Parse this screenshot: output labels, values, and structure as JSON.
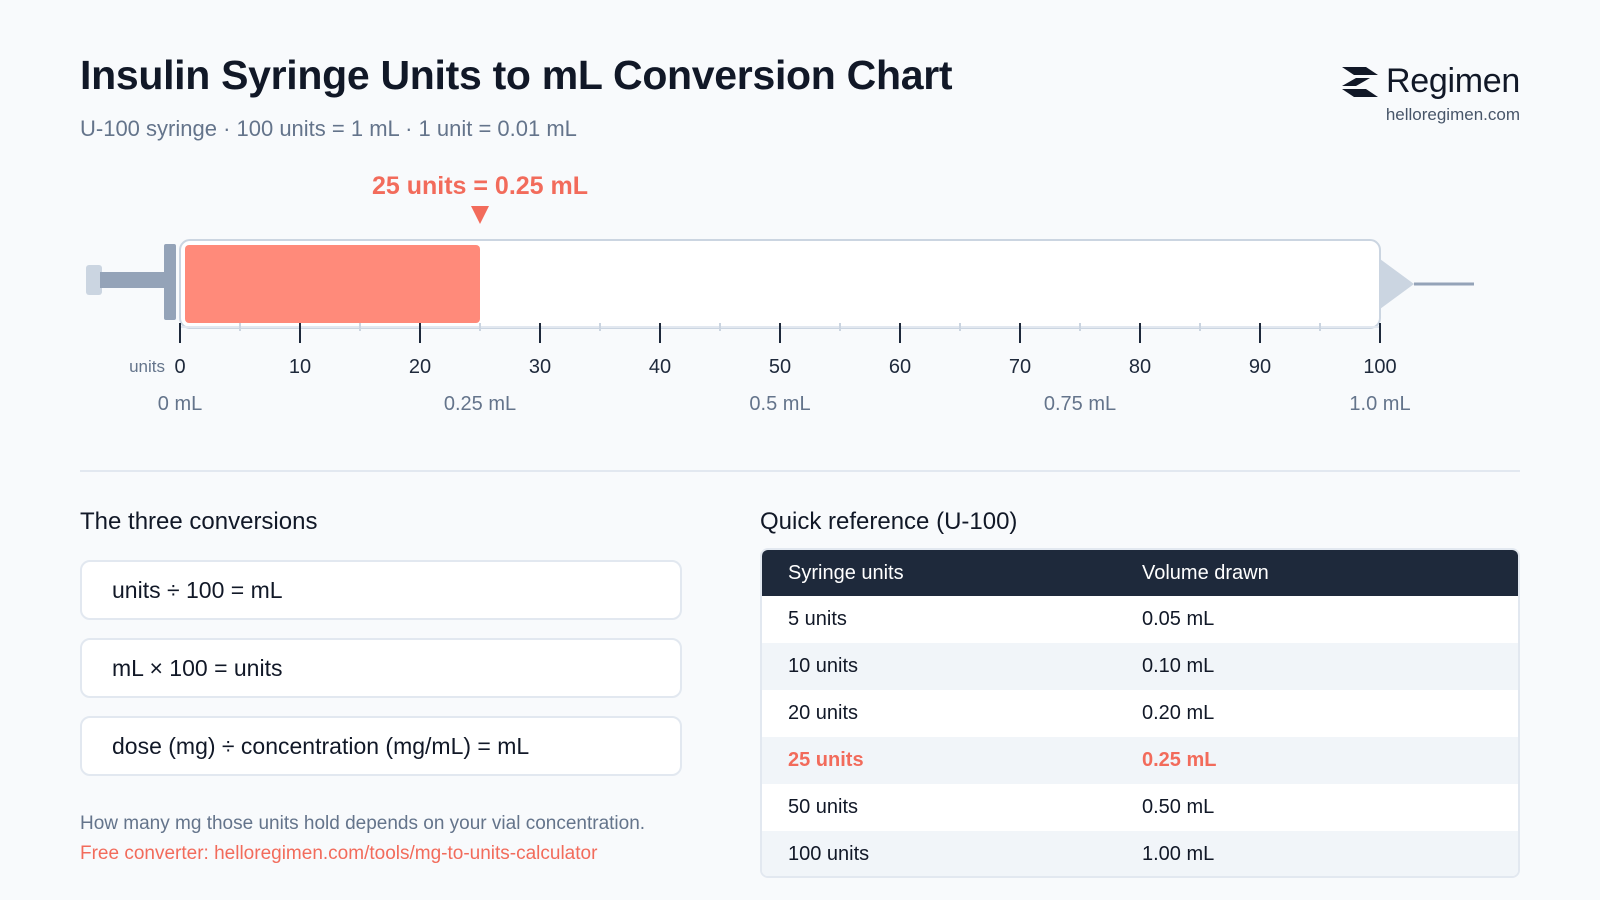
{
  "header": {
    "title": "Insulin Syringe Units to mL Conversion Chart",
    "subtitle": "U-100 syringe · 100 units = 1 mL · 1 unit = 0.01 mL"
  },
  "brand": {
    "name": "Regimen",
    "url": "helloregimen.com"
  },
  "chart_data": {
    "type": "gauge",
    "title": "",
    "marker_label": "25 units = 0.25 mL",
    "fill_value": 25,
    "units_axis": {
      "label": "units",
      "min": 0,
      "max": 100,
      "ticks": [
        0,
        10,
        20,
        30,
        40,
        50,
        60,
        70,
        80,
        90,
        100
      ],
      "minor_step": 5
    },
    "ml_axis": [
      {
        "value": 0,
        "label": "0 mL"
      },
      {
        "value": 25,
        "label": "0.25 mL"
      },
      {
        "value": 50,
        "label": "0.5 mL"
      },
      {
        "value": 75,
        "label": "0.75 mL"
      },
      {
        "value": 100,
        "label": "1.0 mL"
      }
    ],
    "colors": {
      "fill": "#ff8a7a",
      "accent": "#f26b5b",
      "barrel_border": "#cbd5e1",
      "plunger": "#94a3b8"
    }
  },
  "conversions": {
    "title": "The three conversions",
    "items": [
      "units ÷ 100 = mL",
      "mL × 100 = units",
      "dose (mg) ÷ concentration (mg/mL) = mL"
    ],
    "note": "How many mg those units hold depends on your vial concentration.",
    "link": "Free converter: helloregimen.com/tools/mg-to-units-calculator"
  },
  "reference": {
    "title": "Quick reference (U-100)",
    "headers": [
      "Syringe units",
      "Volume drawn"
    ],
    "rows": [
      {
        "units": "5 units",
        "volume": "0.05 mL"
      },
      {
        "units": "10 units",
        "volume": "0.10 mL"
      },
      {
        "units": "20 units",
        "volume": "0.20 mL"
      },
      {
        "units": "25 units",
        "volume": "0.25 mL",
        "highlight": true
      },
      {
        "units": "50 units",
        "volume": "0.50 mL"
      },
      {
        "units": "100 units",
        "volume": "1.00 mL"
      }
    ]
  }
}
